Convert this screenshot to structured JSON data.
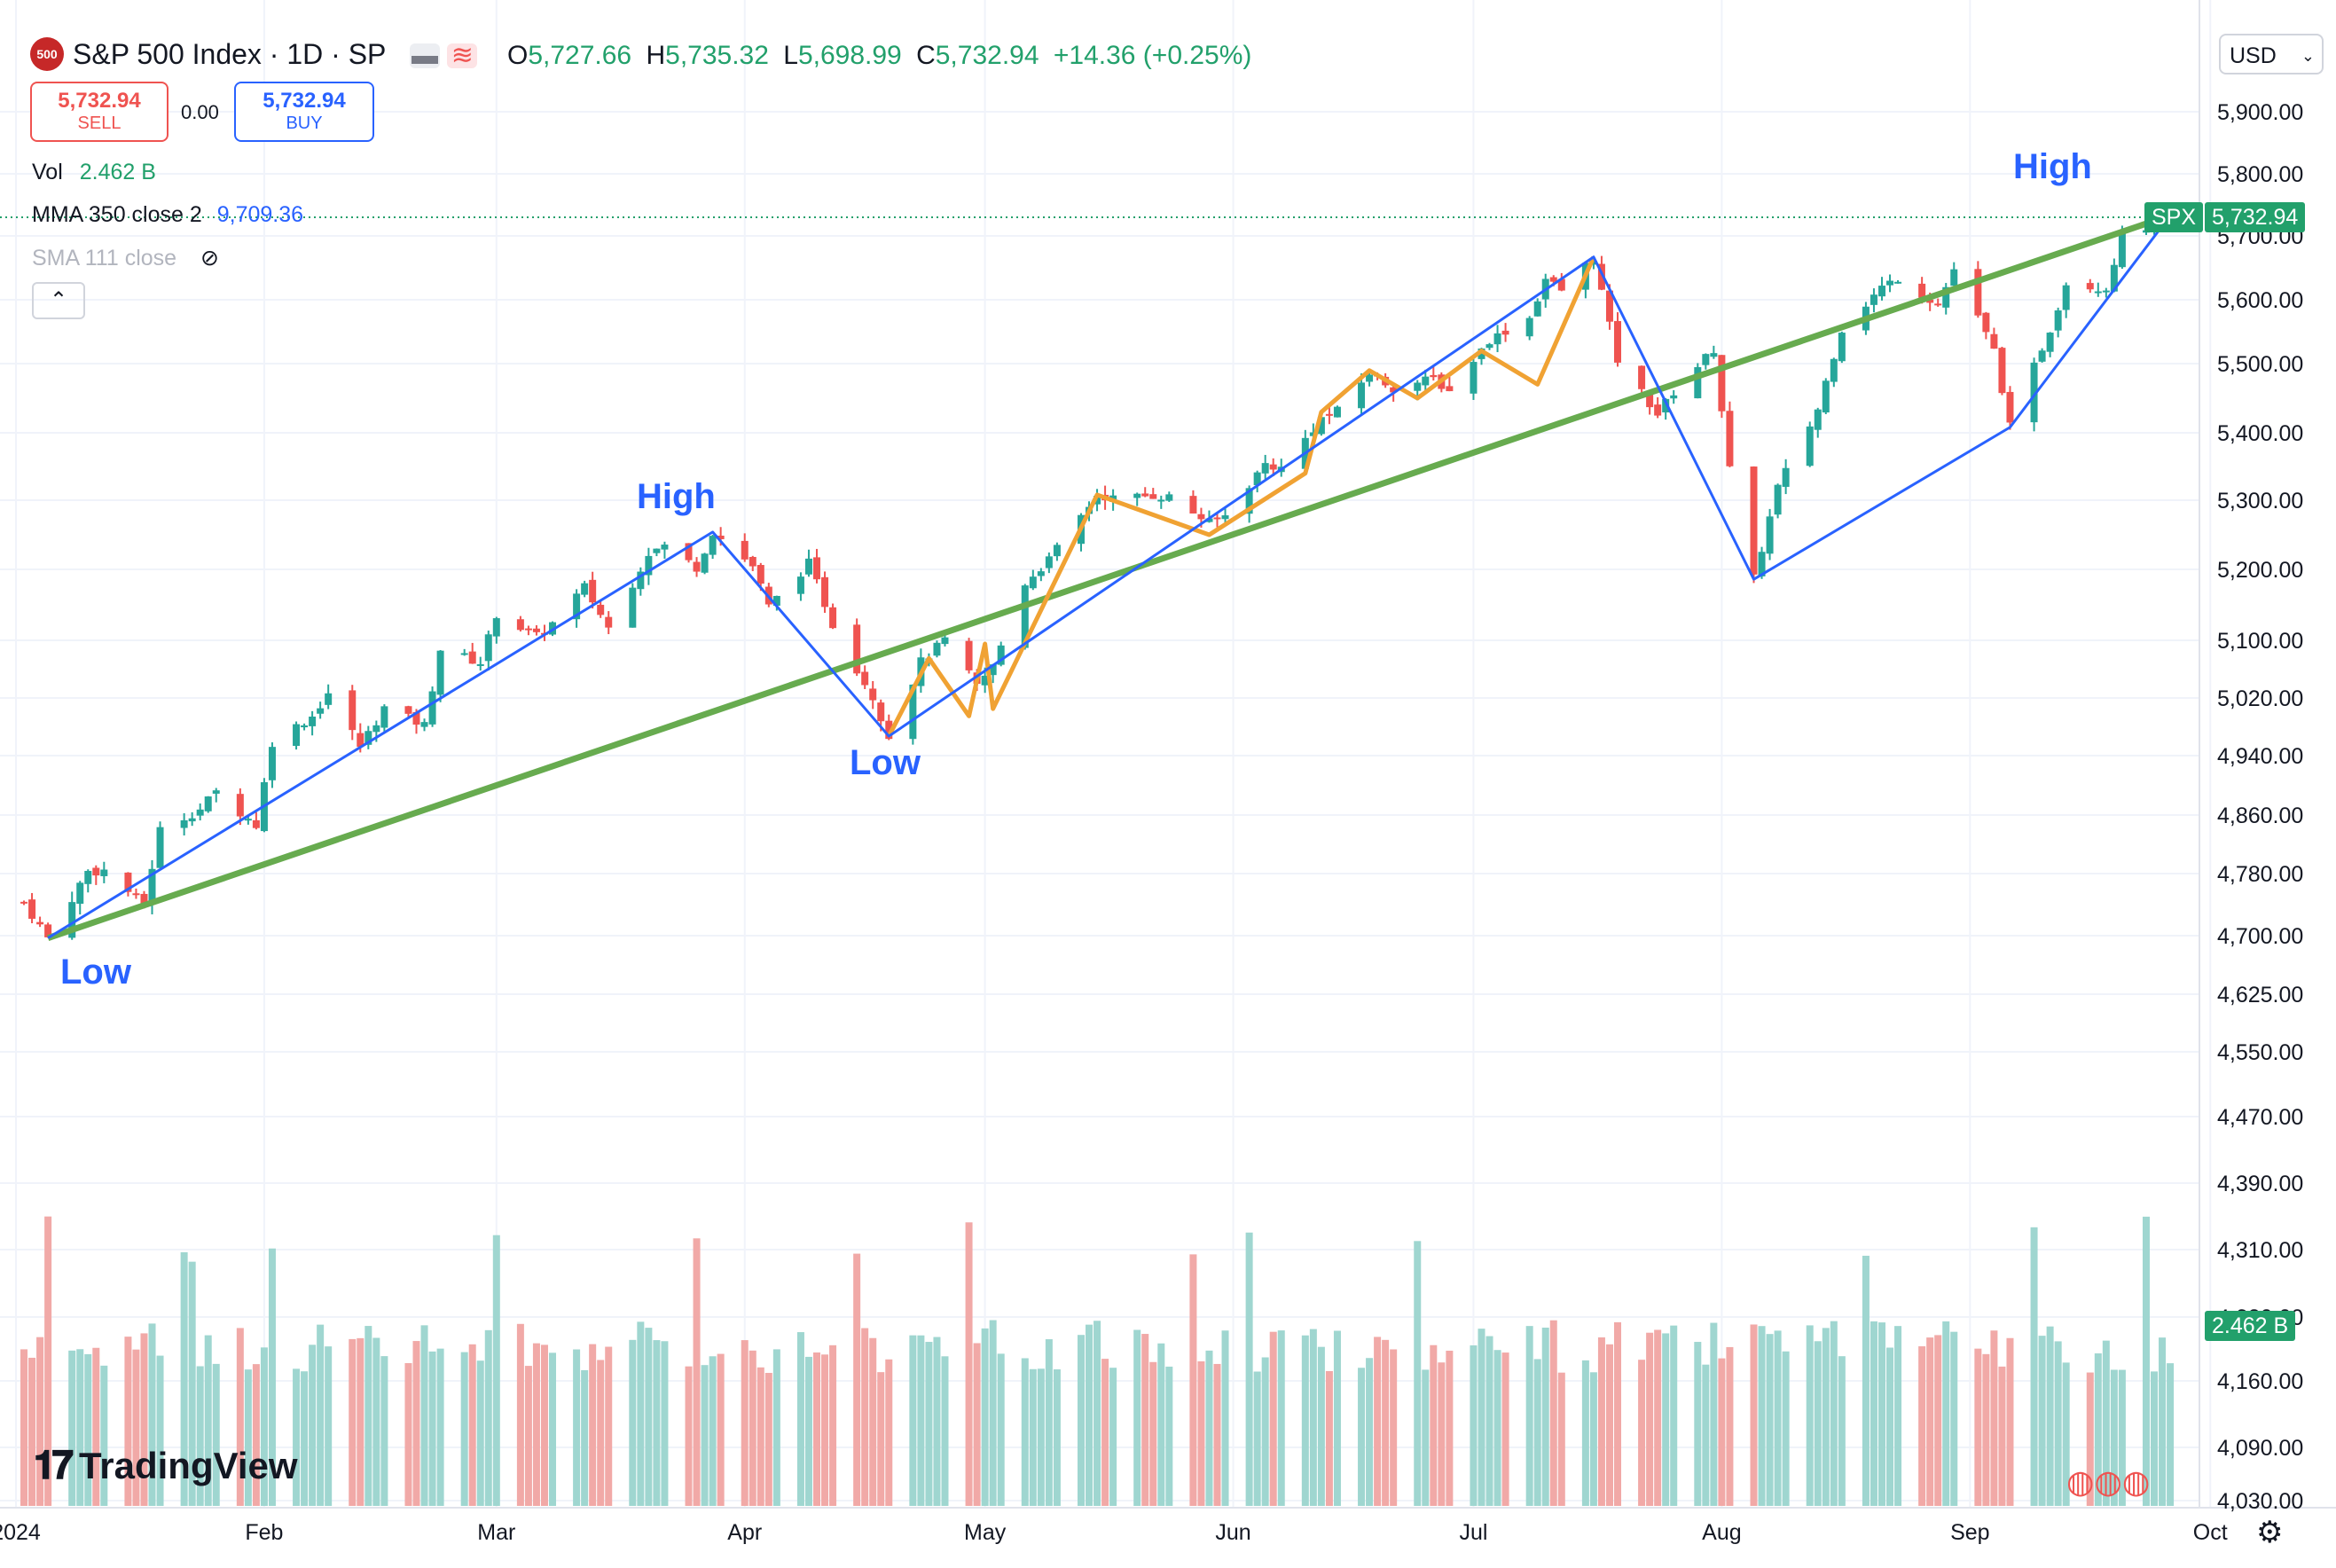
{
  "header": {
    "index_badge": "500",
    "title": "S&P 500 Index · 1D · SP",
    "o_label": "O",
    "o_value": "5,727.66",
    "h_label": "H",
    "h_value": "5,735.32",
    "l_label": "L",
    "l_value": "5,698.99",
    "c_label": "C",
    "c_value": "5,732.94",
    "change": "+14.36 (+0.25%)"
  },
  "trade": {
    "sell_value": "5,732.94",
    "sell_label": "SELL",
    "spread": "0.00",
    "buy_value": "5,732.94",
    "buy_label": "BUY"
  },
  "indicators": {
    "vol_label": "Vol",
    "vol_value": "2.462 B",
    "mma_label": "MMA 350 close 2",
    "mma_value": "9,709.36",
    "sma_label": "SMA 111 close"
  },
  "currency": "USD",
  "price_tag": {
    "symbol": "SPX",
    "value": "5,732.94"
  },
  "volume_tag": "2.462 B",
  "watermark": "TradingView",
  "annotations": [
    "Low",
    "High",
    "Low",
    "High"
  ],
  "colors": {
    "up": "#26a69a",
    "down": "#ef5350",
    "trend_green": "#67ab4f",
    "zigzag_blue": "#2962ff",
    "zigzag_orange": "#f0a233"
  },
  "chart_data": {
    "type": "candlestick",
    "y_ticks": [
      "5,900.00",
      "5,800.00",
      "5,700.00",
      "5,600.00",
      "5,500.00",
      "5,400.00",
      "5,300.00",
      "5,200.00",
      "5,100.00",
      "5,020.00",
      "4,940.00",
      "4,860.00",
      "4,780.00",
      "4,700.00",
      "4,625.00",
      "4,550.00",
      "4,470.00",
      "4,390.00",
      "4,310.00",
      "4,230.00",
      "4,160.00",
      "4,090.00",
      "4,030.00"
    ],
    "y_tick_values": [
      5900,
      5800,
      5700,
      5600,
      5500,
      5400,
      5300,
      5200,
      5100,
      5020,
      4940,
      4860,
      4780,
      4700,
      4625,
      4550,
      4470,
      4390,
      4310,
      4230,
      4160,
      4090,
      4030
    ],
    "x_ticks": [
      {
        "label": "2024",
        "date": "2024-01-01"
      },
      {
        "label": "Feb",
        "date": "2024-02-01"
      },
      {
        "label": "Mar",
        "date": "2024-03-01"
      },
      {
        "label": "Apr",
        "date": "2024-04-01"
      },
      {
        "label": "May",
        "date": "2024-05-01"
      },
      {
        "label": "Jun",
        "date": "2024-06-01"
      },
      {
        "label": "Jul",
        "date": "2024-07-01"
      },
      {
        "label": "Aug",
        "date": "2024-08-01"
      },
      {
        "label": "Sep",
        "date": "2024-09-01"
      },
      {
        "label": "Oct",
        "date": "2024-10-01"
      }
    ],
    "closes": [
      {
        "date": "2024-01-02",
        "close": 4743
      },
      {
        "date": "2024-01-05",
        "close": 4697
      },
      {
        "date": "2024-01-10",
        "close": 4783
      },
      {
        "date": "2024-01-12",
        "close": 4784
      },
      {
        "date": "2024-01-17",
        "close": 4739
      },
      {
        "date": "2024-01-19",
        "close": 4840
      },
      {
        "date": "2024-01-24",
        "close": 4868
      },
      {
        "date": "2024-01-26",
        "close": 4891
      },
      {
        "date": "2024-01-31",
        "close": 4846
      },
      {
        "date": "2024-02-02",
        "close": 4959
      },
      {
        "date": "2024-02-07",
        "close": 4995
      },
      {
        "date": "2024-02-09",
        "close": 5027
      },
      {
        "date": "2024-02-13",
        "close": 4953
      },
      {
        "date": "2024-02-16",
        "close": 5006
      },
      {
        "date": "2024-02-21",
        "close": 4982
      },
      {
        "date": "2024-02-23",
        "close": 5088
      },
      {
        "date": "2024-02-28",
        "close": 5069
      },
      {
        "date": "2024-03-01",
        "close": 5137
      },
      {
        "date": "2024-03-06",
        "close": 5105
      },
      {
        "date": "2024-03-08",
        "close": 5124
      },
      {
        "date": "2024-03-12",
        "close": 5175
      },
      {
        "date": "2024-03-15",
        "close": 5117
      },
      {
        "date": "2024-03-20",
        "close": 5224
      },
      {
        "date": "2024-03-22",
        "close": 5234
      },
      {
        "date": "2024-03-26",
        "close": 5203
      },
      {
        "date": "2024-03-28",
        "close": 5254
      },
      {
        "date": "2024-04-02",
        "close": 5205
      },
      {
        "date": "2024-04-04",
        "close": 5147
      },
      {
        "date": "2024-04-09",
        "close": 5209
      },
      {
        "date": "2024-04-12",
        "close": 5123
      },
      {
        "date": "2024-04-15",
        "close": 5061
      },
      {
        "date": "2024-04-17",
        "close": 5022
      },
      {
        "date": "2024-04-19",
        "close": 4967
      },
      {
        "date": "2024-04-23",
        "close": 5070
      },
      {
        "date": "2024-04-26",
        "close": 5100
      },
      {
        "date": "2024-04-30",
        "close": 5036
      },
      {
        "date": "2024-05-02",
        "close": 5064
      },
      {
        "date": "2024-05-06",
        "close": 5181
      },
      {
        "date": "2024-05-09",
        "close": 5214
      },
      {
        "date": "2024-05-15",
        "close": 5308
      },
      {
        "date": "2024-05-17",
        "close": 5303
      },
      {
        "date": "2024-05-22",
        "close": 5307
      },
      {
        "date": "2024-05-24",
        "close": 5305
      },
      {
        "date": "2024-05-29",
        "close": 5267
      },
      {
        "date": "2024-05-31",
        "close": 5278
      },
      {
        "date": "2024-06-05",
        "close": 5354
      },
      {
        "date": "2024-06-07",
        "close": 5347
      },
      {
        "date": "2024-06-12",
        "close": 5421
      },
      {
        "date": "2024-06-14",
        "close": 5431
      },
      {
        "date": "2024-06-18",
        "close": 5487
      },
      {
        "date": "2024-06-21",
        "close": 5465
      },
      {
        "date": "2024-06-26",
        "close": 5478
      },
      {
        "date": "2024-06-28",
        "close": 5460
      },
      {
        "date": "2024-07-03",
        "close": 5537
      },
      {
        "date": "2024-07-08",
        "close": 5572
      },
      {
        "date": "2024-07-10",
        "close": 5633
      },
      {
        "date": "2024-07-12",
        "close": 5615
      },
      {
        "date": "2024-07-16",
        "close": 5667
      },
      {
        "date": "2024-07-19",
        "close": 5505
      },
      {
        "date": "2024-07-24",
        "close": 5427
      },
      {
        "date": "2024-07-26",
        "close": 5459
      },
      {
        "date": "2024-07-31",
        "close": 5522
      },
      {
        "date": "2024-08-02",
        "close": 5346
      },
      {
        "date": "2024-08-05",
        "close": 5186
      },
      {
        "date": "2024-08-08",
        "close": 5319
      },
      {
        "date": "2024-08-13",
        "close": 5434
      },
      {
        "date": "2024-08-16",
        "close": 5554
      },
      {
        "date": "2024-08-21",
        "close": 5620
      },
      {
        "date": "2024-08-23",
        "close": 5634
      },
      {
        "date": "2024-08-28",
        "close": 5592
      },
      {
        "date": "2024-08-30",
        "close": 5648
      },
      {
        "date": "2024-09-04",
        "close": 5520
      },
      {
        "date": "2024-09-06",
        "close": 5408
      },
      {
        "date": "2024-09-11",
        "close": 5554
      },
      {
        "date": "2024-09-13",
        "close": 5626
      },
      {
        "date": "2024-09-18",
        "close": 5618
      },
      {
        "date": "2024-09-20",
        "close": 5702
      },
      {
        "date": "2024-09-25",
        "close": 5722
      },
      {
        "date": "2024-09-26",
        "close": 5733
      }
    ],
    "trendline": [
      {
        "date": "2024-01-05",
        "value": 4697
      },
      {
        "date": "2024-09-26",
        "value": 5733
      }
    ],
    "zigzag_blue": [
      {
        "date": "2024-01-05",
        "value": 4697
      },
      {
        "date": "2024-03-28",
        "value": 5254
      },
      {
        "date": "2024-04-19",
        "value": 4967
      },
      {
        "date": "2024-07-16",
        "value": 5667
      },
      {
        "date": "2024-08-05",
        "value": 5186
      },
      {
        "date": "2024-09-06",
        "value": 5408
      },
      {
        "date": "2024-09-26",
        "value": 5733
      }
    ],
    "zigzag_orange": [
      {
        "date": "2024-04-19",
        "value": 4967
      },
      {
        "date": "2024-04-24",
        "value": 5075
      },
      {
        "date": "2024-04-29",
        "value": 4995
      },
      {
        "date": "2024-05-01",
        "value": 5095
      },
      {
        "date": "2024-05-02",
        "value": 5005
      },
      {
        "date": "2024-05-15",
        "value": 5308
      },
      {
        "date": "2024-05-29",
        "value": 5250
      },
      {
        "date": "2024-06-10",
        "value": 5340
      },
      {
        "date": "2024-06-12",
        "value": 5430
      },
      {
        "date": "2024-06-18",
        "value": 5490
      },
      {
        "date": "2024-06-24",
        "value": 5450
      },
      {
        "date": "2024-07-02",
        "value": 5520
      },
      {
        "date": "2024-07-09",
        "value": 5470
      },
      {
        "date": "2024-07-16",
        "value": 5667
      }
    ],
    "annotation_points": [
      {
        "date": "2024-01-05",
        "value": 4697,
        "text": "Low"
      },
      {
        "date": "2024-03-28",
        "value": 5254,
        "text": "High"
      },
      {
        "date": "2024-04-19",
        "value": 4967,
        "text": "Low"
      },
      {
        "date": "2024-09-26",
        "value": 5733,
        "text": "High"
      }
    ],
    "volume_note": "volume bars for each session, last session 2.462 B"
  }
}
